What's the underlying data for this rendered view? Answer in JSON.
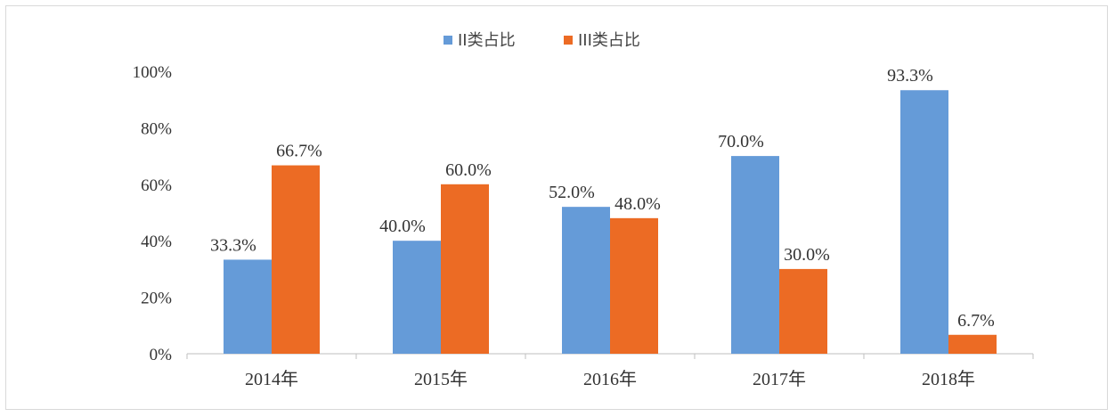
{
  "chart_data": {
    "type": "bar",
    "title": "",
    "xlabel": "",
    "ylabel": "",
    "categories": [
      "2014年",
      "2015年",
      "2016年",
      "2017年",
      "2018年"
    ],
    "series": [
      {
        "name": "II类占比",
        "color": "#659BD8",
        "values": [
          33.3,
          40.0,
          52.0,
          70.0,
          93.3
        ],
        "labels": [
          "33.3%",
          "40.0%",
          "52.0%",
          "70.0%",
          "93.3%"
        ]
      },
      {
        "name": "III类占比",
        "color": "#EC6B24",
        "values": [
          66.7,
          60.0,
          48.0,
          30.0,
          6.7
        ],
        "labels": [
          "66.7%",
          "60.0%",
          "48.0%",
          "30.0%",
          "6.7%"
        ]
      }
    ],
    "ylim": [
      0,
      100
    ],
    "yticks": [
      0,
      20,
      40,
      60,
      80,
      100
    ],
    "ytick_labels": [
      "0%",
      "20%",
      "40%",
      "60%",
      "80%",
      "100%"
    ],
    "grid": false,
    "legend_position": "top-center"
  }
}
